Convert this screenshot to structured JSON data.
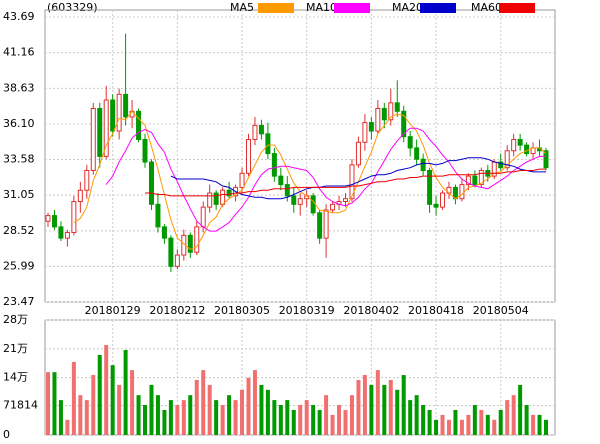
{
  "chart_data": {
    "type": "candlestick",
    "title": "(603329)",
    "categories": [
      null,
      null,
      null,
      null,
      null,
      null,
      null,
      null,
      null,
      null,
      "20180129",
      null,
      null,
      null,
      null,
      null,
      null,
      null,
      null,
      null,
      "20180212",
      null,
      null,
      null,
      null,
      null,
      null,
      null,
      null,
      null,
      "20180305",
      null,
      null,
      null,
      null,
      null,
      null,
      null,
      null,
      null,
      "20180319",
      null,
      null,
      null,
      null,
      null,
      null,
      null,
      null,
      null,
      "20180402",
      null,
      null,
      null,
      null,
      null,
      null,
      null,
      null,
      null,
      "20180418",
      null,
      null,
      null,
      null,
      null,
      null,
      null,
      null,
      null,
      "20180504",
      null,
      null,
      null,
      null,
      null,
      null,
      null
    ],
    "open": [
      29.2,
      29.6,
      28.8,
      28.0,
      28.4,
      30.6,
      31.4,
      32.8,
      37.2,
      33.8,
      37.8,
      35.6,
      38.2,
      36.6,
      37.0,
      35.0,
      33.4,
      30.4,
      28.8,
      28.0,
      26.0,
      26.8,
      28.2,
      27.0,
      28.8,
      30.2,
      31.2,
      30.4,
      31.4,
      31.0,
      31.6,
      32.6,
      35.0,
      36.0,
      35.4,
      34.0,
      32.4,
      31.8,
      31.0,
      30.4,
      30.8,
      31.0,
      29.8,
      28.0,
      30.0,
      30.4,
      30.6,
      30.8,
      33.2,
      34.8,
      36.2,
      35.6,
      37.2,
      36.4,
      37.6,
      37.0,
      35.2,
      34.4,
      33.6,
      32.8,
      30.4,
      30.2,
      31.2,
      31.6,
      30.8,
      31.8,
      32.4,
      31.8,
      32.8,
      32.4,
      33.4,
      33.0,
      34.2,
      35.0,
      34.6,
      34.0,
      34.4,
      34.2
    ],
    "high": [
      29.8,
      30.0,
      29.2,
      28.6,
      31.0,
      32.0,
      33.2,
      37.6,
      37.6,
      38.8,
      38.2,
      38.6,
      42.5,
      37.8,
      37.2,
      35.4,
      33.6,
      31.2,
      29.0,
      28.2,
      27.2,
      28.6,
      28.4,
      29.2,
      30.6,
      31.8,
      31.4,
      31.6,
      32.0,
      31.8,
      33.0,
      35.4,
      36.6,
      36.4,
      36.2,
      34.4,
      33.0,
      32.4,
      31.6,
      31.2,
      31.4,
      31.2,
      30.0,
      30.4,
      30.6,
      31.0,
      31.2,
      33.6,
      35.2,
      36.8,
      36.6,
      37.8,
      37.6,
      38.6,
      39.2,
      37.4,
      35.6,
      35.0,
      34.0,
      33.0,
      31.0,
      31.4,
      32.0,
      31.8,
      32.2,
      32.6,
      32.8,
      33.0,
      33.2,
      33.6,
      34.0,
      34.6,
      35.4,
      35.4,
      34.8,
      34.8,
      35.0,
      34.4
    ],
    "low": [
      28.8,
      28.6,
      27.8,
      27.4,
      28.2,
      29.8,
      30.8,
      32.5,
      33.0,
      33.6,
      35.2,
      35.0,
      36.0,
      35.8,
      34.8,
      33.0,
      30.0,
      28.4,
      27.6,
      25.6,
      25.8,
      26.4,
      26.6,
      26.8,
      28.4,
      29.8,
      30.0,
      30.2,
      30.8,
      30.6,
      31.2,
      32.4,
      34.6,
      35.0,
      33.6,
      32.0,
      31.4,
      30.6,
      29.8,
      29.6,
      30.2,
      29.6,
      27.6,
      26.6,
      29.8,
      30.0,
      30.2,
      30.6,
      33.0,
      34.2,
      35.0,
      35.4,
      35.8,
      36.0,
      36.6,
      34.8,
      33.8,
      33.2,
      32.4,
      29.8,
      29.6,
      30.0,
      30.8,
      30.4,
      30.6,
      31.4,
      31.6,
      31.6,
      32.0,
      32.2,
      32.8,
      32.8,
      33.8,
      34.2,
      33.8,
      33.6,
      33.8,
      32.8
    ],
    "close": [
      29.6,
      28.8,
      28.0,
      28.4,
      30.6,
      31.4,
      32.8,
      37.2,
      33.8,
      37.8,
      35.6,
      38.2,
      36.6,
      37.0,
      35.0,
      33.4,
      30.4,
      28.8,
      28.0,
      26.0,
      26.8,
      28.2,
      27.0,
      28.8,
      30.2,
      31.2,
      30.4,
      31.4,
      31.0,
      31.6,
      32.6,
      35.0,
      36.0,
      35.4,
      34.0,
      32.4,
      31.8,
      31.0,
      30.4,
      30.8,
      31.0,
      29.8,
      28.0,
      30.0,
      30.4,
      30.6,
      30.8,
      33.2,
      34.8,
      36.2,
      35.6,
      37.2,
      36.4,
      37.6,
      37.0,
      35.2,
      34.4,
      33.6,
      32.8,
      30.4,
      30.2,
      31.2,
      31.6,
      30.8,
      31.8,
      32.4,
      31.8,
      32.8,
      32.4,
      33.4,
      33.0,
      34.2,
      35.0,
      34.6,
      34.0,
      34.4,
      34.2,
      33.0
    ],
    "volume": [
      153000,
      153000,
      85000,
      37000,
      178000,
      97000,
      85000,
      146000,
      195000,
      219000,
      170000,
      122000,
      207000,
      158000,
      97000,
      73000,
      122000,
      97000,
      61000,
      85000,
      73000,
      85000,
      97000,
      134000,
      158000,
      122000,
      85000,
      73000,
      97000,
      85000,
      110000,
      139000,
      158000,
      122000,
      110000,
      85000,
      73000,
      85000,
      61000,
      73000,
      85000,
      73000,
      61000,
      97000,
      49000,
      73000,
      61000,
      97000,
      134000,
      146000,
      122000,
      158000,
      122000,
      134000,
      110000,
      146000,
      85000,
      97000,
      73000,
      61000,
      37000,
      49000,
      37000,
      61000,
      37000,
      49000,
      73000,
      61000,
      49000,
      37000,
      61000,
      85000,
      97000,
      122000,
      73000,
      49000,
      49000,
      37000
    ],
    "up_color": "#e03030",
    "down_color": "#009900",
    "volume_up_color": "#f07070",
    "ylim": [
      23.47,
      43.69
    ],
    "yticks": [
      23.47,
      25.99,
      28.52,
      31.05,
      33.58,
      {
        "value": 36.1,
        "label": "36.10"
      },
      38.63,
      41.16,
      43.69
    ],
    "y2lim": [
      0,
      280000
    ],
    "y2ticks": [
      0,
      71814,
      {
        "value": 140000,
        "label": "14万"
      },
      {
        "value": 210000,
        "label": "21万"
      },
      {
        "value": 280000,
        "label": "28万"
      }
    ],
    "grid": true,
    "series": [
      {
        "name": "MA5",
        "color": "#ff9900",
        "values": [
          null,
          null,
          null,
          null,
          29.1,
          29.4,
          30.2,
          32.1,
          33.2,
          34.6,
          35.4,
          36.5,
          36.4,
          37.0,
          36.5,
          36.0,
          34.5,
          32.9,
          31.1,
          29.3,
          28.0,
          27.6,
          27.2,
          27.4,
          28.2,
          29.1,
          29.5,
          30.4,
          30.8,
          31.1,
          31.4,
          32.3,
          33.2,
          34.1,
          34.6,
          34.6,
          33.9,
          32.9,
          31.9,
          31.3,
          31.0,
          30.6,
          30.0,
          29.9,
          29.8,
          29.8,
          30.0,
          31.0,
          32.0,
          33.1,
          34.1,
          35.4,
          36.0,
          36.6,
          36.8,
          36.7,
          36.1,
          35.6,
          34.6,
          33.3,
          32.3,
          31.6,
          31.2,
          30.8,
          31.1,
          31.6,
          31.7,
          31.9,
          32.2,
          32.6,
          32.7,
          33.2,
          33.6,
          34.0,
          34.2,
          34.4,
          34.4,
          34.0
        ]
      },
      {
        "name": "MA10",
        "color": "#ff00ff",
        "values": [
          null,
          null,
          null,
          null,
          null,
          null,
          null,
          null,
          null,
          31.8,
          32.4,
          33.4,
          34.2,
          35.1,
          35.5,
          35.7,
          35.5,
          34.7,
          34.1,
          32.9,
          32.0,
          31.0,
          30.1,
          29.2,
          28.8,
          28.5,
          28.5,
          28.8,
          29.1,
          29.7,
          30.2,
          30.9,
          31.8,
          32.5,
          32.9,
          33.0,
          33.1,
          33.1,
          33.0,
          32.9,
          32.8,
          32.3,
          31.5,
          30.9,
          30.6,
          30.4,
          30.3,
          30.5,
          30.9,
          31.5,
          31.9,
          32.7,
          33.5,
          34.3,
          34.9,
          35.4,
          35.8,
          35.8,
          35.6,
          35.0,
          34.5,
          33.9,
          33.4,
          32.7,
          32.2,
          31.9,
          31.7,
          31.6,
          31.5,
          31.8,
          32.1,
          32.4,
          32.8,
          33.1,
          33.4,
          33.6,
          33.8,
          33.8
        ]
      },
      {
        "name": "MA20",
        "color": "#0000cc",
        "values": [
          null,
          null,
          null,
          null,
          null,
          null,
          null,
          null,
          null,
          null,
          null,
          null,
          null,
          null,
          null,
          null,
          null,
          null,
          null,
          32.4,
          32.2,
          32.2,
          32.2,
          32.2,
          32.2,
          32.1,
          32.0,
          31.7,
          31.6,
          31.3,
          31.1,
          31.0,
          30.9,
          30.9,
          30.8,
          30.8,
          30.8,
          30.9,
          31.1,
          31.3,
          31.5,
          31.6,
          31.6,
          31.7,
          31.7,
          31.7,
          31.7,
          31.8,
          32.0,
          32.2,
          32.4,
          32.5,
          32.5,
          32.6,
          32.8,
          32.9,
          33.0,
          33.2,
          33.3,
          33.3,
          33.2,
          33.3,
          33.5,
          33.5,
          33.6,
          33.7,
          33.7,
          33.7,
          33.6,
          33.4,
          33.3,
          33.2,
          33.1,
          32.9,
          32.8,
          32.7,
          32.7,
          32.7
        ]
      },
      {
        "name": "MA60",
        "color": "#ee0000",
        "values": [
          null,
          null,
          null,
          null,
          null,
          null,
          null,
          null,
          null,
          null,
          null,
          null,
          null,
          null,
          null,
          31.2,
          31.2,
          31.1,
          31.1,
          31.0,
          31.0,
          31.0,
          31.0,
          31.0,
          31.0,
          31.0,
          31.0,
          31.1,
          31.1,
          31.2,
          31.2,
          31.3,
          31.3,
          31.4,
          31.4,
          31.5,
          31.5,
          31.5,
          31.6,
          31.6,
          31.6,
          31.6,
          31.6,
          31.6,
          31.6,
          31.6,
          31.6,
          31.7,
          31.7,
          31.8,
          31.9,
          32.0,
          32.0,
          32.1,
          32.2,
          32.2,
          32.3,
          32.3,
          32.4,
          32.4,
          32.4,
          32.4,
          32.5,
          32.5,
          32.5,
          32.5,
          32.5,
          32.6,
          32.6,
          32.6,
          32.6,
          32.7,
          32.7,
          32.8,
          32.8,
          32.8,
          32.9,
          32.9
        ]
      }
    ]
  }
}
